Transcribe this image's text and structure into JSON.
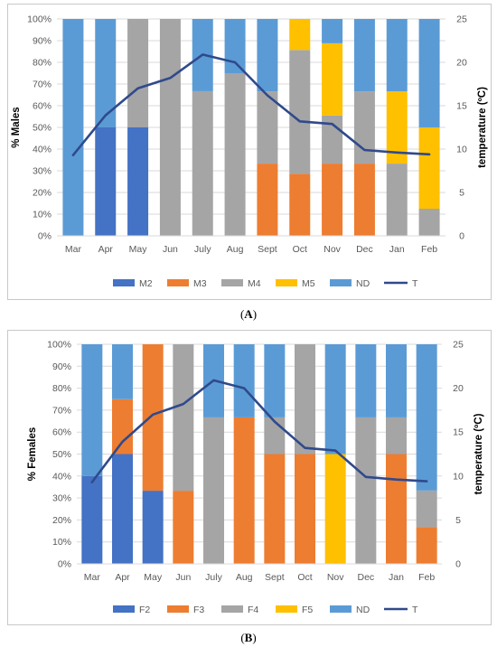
{
  "captions": {
    "a_prefix": "(",
    "a_label": "A",
    "a_suffix": ")",
    "b_prefix": "(",
    "b_label": "B",
    "b_suffix": ")"
  },
  "chart_data": [
    {
      "type": "bar",
      "stacked": true,
      "categories": [
        "Mar",
        "Apr",
        "May",
        "Jun",
        "July",
        "Aug",
        "Sept",
        "Oct",
        "Nov",
        "Dec",
        "Jan",
        "Feb"
      ],
      "ylabel": "% Males",
      "y2label": "temperature (ºC)",
      "ylim": [
        0,
        100
      ],
      "y2lim": [
        0,
        25
      ],
      "y_ticks": [
        "0%",
        "10%",
        "20%",
        "30%",
        "40%",
        "50%",
        "60%",
        "70%",
        "80%",
        "90%",
        "100%"
      ],
      "y2_ticks": [
        "0",
        "5",
        "10",
        "15",
        "20",
        "25"
      ],
      "legend_position": "bottom",
      "series": [
        {
          "name": "M2",
          "color": "#4472C4",
          "values": [
            0,
            50,
            50,
            0,
            0,
            0,
            0,
            0,
            0,
            0,
            0,
            0
          ]
        },
        {
          "name": "M3",
          "color": "#ED7D31",
          "values": [
            0,
            0,
            0,
            0,
            0,
            0,
            33.3,
            28.6,
            33.3,
            33.3,
            0,
            0
          ]
        },
        {
          "name": "M4",
          "color": "#A5A5A5",
          "values": [
            0,
            0,
            50,
            100,
            66.7,
            75,
            33.3,
            57.1,
            22.2,
            33.3,
            33.3,
            12.5
          ]
        },
        {
          "name": "M5",
          "color": "#FFC000",
          "values": [
            0,
            0,
            0,
            0,
            0,
            0,
            0,
            14.3,
            33.3,
            0,
            33.3,
            37.5
          ]
        },
        {
          "name": "ND",
          "color": "#5B9BD5",
          "values": [
            100,
            50,
            0,
            0,
            33.3,
            25,
            33.4,
            0,
            11.2,
            33.4,
            33.4,
            50
          ]
        }
      ],
      "line": {
        "name": "T",
        "color": "#2F4A8C",
        "values": [
          9.3,
          13.9,
          17.0,
          18.2,
          20.9,
          20.0,
          16.2,
          13.2,
          12.9,
          9.9,
          9.6,
          9.4
        ]
      }
    },
    {
      "type": "bar",
      "stacked": true,
      "categories": [
        "Mar",
        "Apr",
        "May",
        "Jun",
        "July",
        "Aug",
        "Sept",
        "Oct",
        "Nov",
        "Dec",
        "Jan",
        "Feb"
      ],
      "ylabel": "% Females",
      "y2label": "temperature (ºC)",
      "ylim": [
        0,
        100
      ],
      "y2lim": [
        0,
        25
      ],
      "y_ticks": [
        "0%",
        "10%",
        "20%",
        "30%",
        "40%",
        "50%",
        "60%",
        "70%",
        "80%",
        "90%",
        "100%"
      ],
      "y2_ticks": [
        "0",
        "5",
        "10",
        "15",
        "20",
        "25"
      ],
      "legend_position": "bottom",
      "series": [
        {
          "name": "F2",
          "color": "#4472C4",
          "values": [
            40,
            50,
            33.3,
            0,
            0,
            0,
            0,
            0,
            0,
            0,
            0,
            0
          ]
        },
        {
          "name": "F3",
          "color": "#ED7D31",
          "values": [
            0,
            25,
            66.7,
            33.3,
            0,
            66.7,
            50,
            50,
            0,
            0,
            50,
            16.7
          ]
        },
        {
          "name": "F4",
          "color": "#A5A5A5",
          "values": [
            0,
            0,
            0,
            66.7,
            66.7,
            0,
            16.7,
            50,
            0,
            66.7,
            16.7,
            16.7
          ]
        },
        {
          "name": "F5",
          "color": "#FFC000",
          "values": [
            0,
            0,
            0,
            0,
            0,
            0,
            0,
            0,
            50,
            0,
            0,
            0
          ]
        },
        {
          "name": "ND",
          "color": "#5B9BD5",
          "values": [
            60,
            25,
            0,
            0,
            33.3,
            33.3,
            33.3,
            0,
            50,
            33.3,
            33.3,
            66.6
          ]
        }
      ],
      "line": {
        "name": "T",
        "color": "#2F4A8C",
        "values": [
          9.3,
          13.9,
          17.0,
          18.2,
          20.9,
          20.0,
          16.2,
          13.2,
          12.9,
          9.9,
          9.6,
          9.4
        ]
      }
    }
  ]
}
